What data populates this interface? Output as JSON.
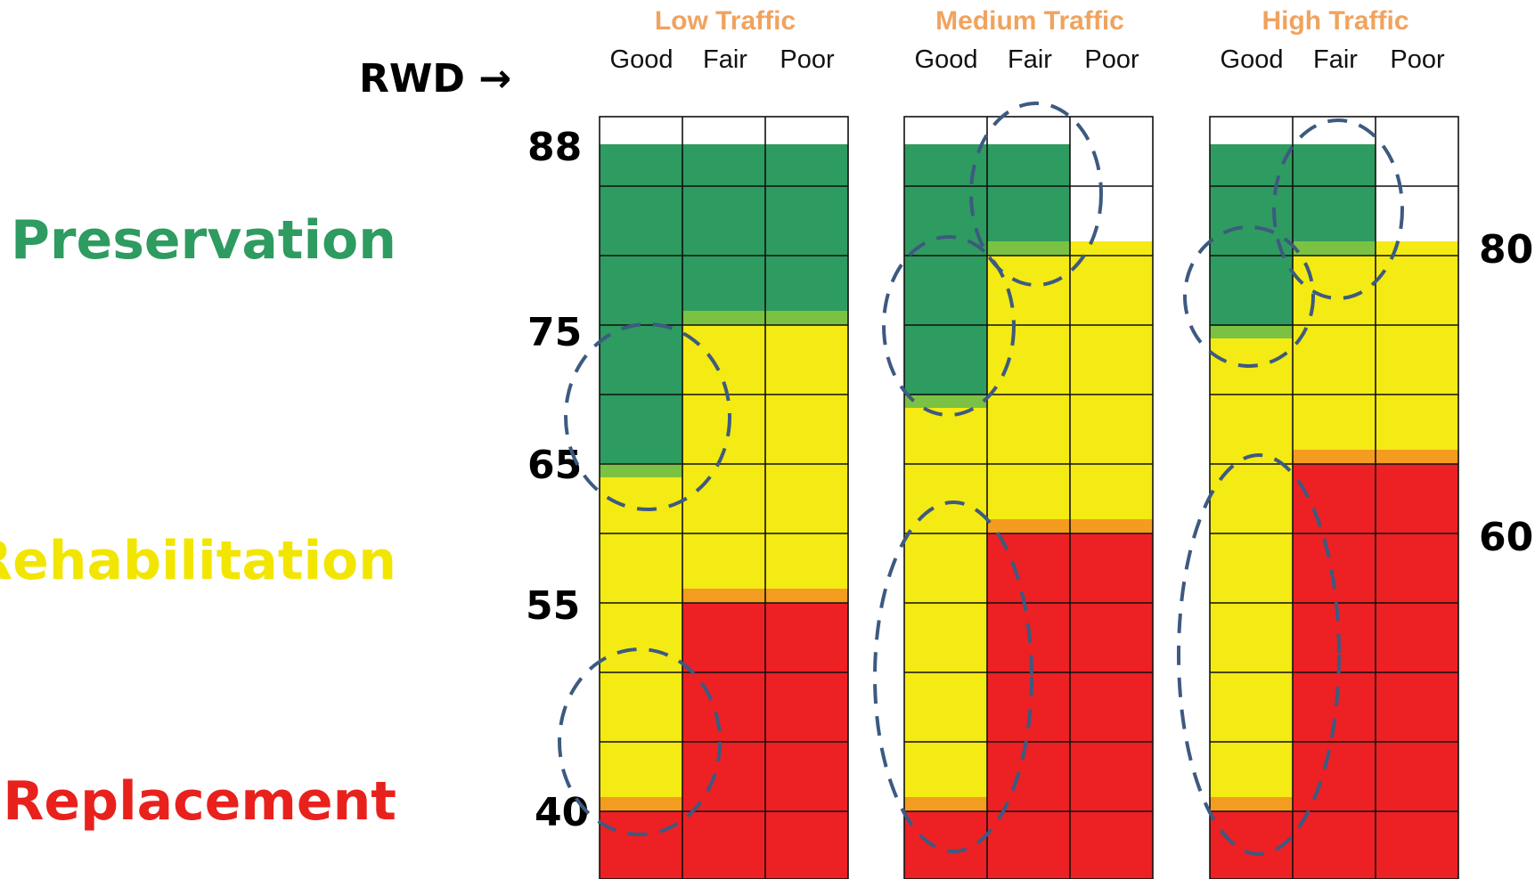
{
  "rwd_label": "RWD →",
  "zones": [
    {
      "label": "Preservation",
      "color": "#2e9b60"
    },
    {
      "label": "Rehabilitation",
      "color": "#f2e600"
    },
    {
      "label": "Replacement",
      "color": "#e8211d"
    }
  ],
  "left_values": [
    "88",
    "75",
    "65",
    "55",
    "40"
  ],
  "right_values": [
    "80",
    "60"
  ],
  "colors": {
    "preservation": "#2e9b60",
    "transition_green": "#7cc242",
    "rehabilitation": "#f4ea14",
    "transition_orange": "#f39c1f",
    "replacement": "#ed2024",
    "traffic_title": "#f0a35e",
    "circle": "#3d5a80",
    "grid": "#111111"
  },
  "conditions": [
    "Good",
    "Fair",
    "Poor"
  ],
  "panels": [
    {
      "title": "Low Traffic",
      "columns": [
        {
          "condition": "Good",
          "preservation_min": 65,
          "replacement_max": 40,
          "top": 88
        },
        {
          "condition": "Fair",
          "preservation_min": 75,
          "replacement_max": 55,
          "top": 88
        },
        {
          "condition": "Poor",
          "preservation_min": 75,
          "replacement_max": 55,
          "top": 88
        }
      ]
    },
    {
      "title": "Medium Traffic",
      "columns": [
        {
          "condition": "Good",
          "preservation_min": 70,
          "replacement_max": 40,
          "top": 88
        },
        {
          "condition": "Fair",
          "preservation_min": 80,
          "replacement_max": 60,
          "top": 88
        },
        {
          "condition": "Poor",
          "preservation_min": null,
          "replacement_max": 60,
          "top": 80
        }
      ]
    },
    {
      "title": "High Traffic",
      "columns": [
        {
          "condition": "Good",
          "preservation_min": 75,
          "replacement_max": 40,
          "top": 88
        },
        {
          "condition": "Fair",
          "preservation_min": 80,
          "replacement_max": 65,
          "top": 88
        },
        {
          "condition": "Poor",
          "preservation_min": null,
          "replacement_max": 65,
          "top": 80
        }
      ]
    }
  ]
}
